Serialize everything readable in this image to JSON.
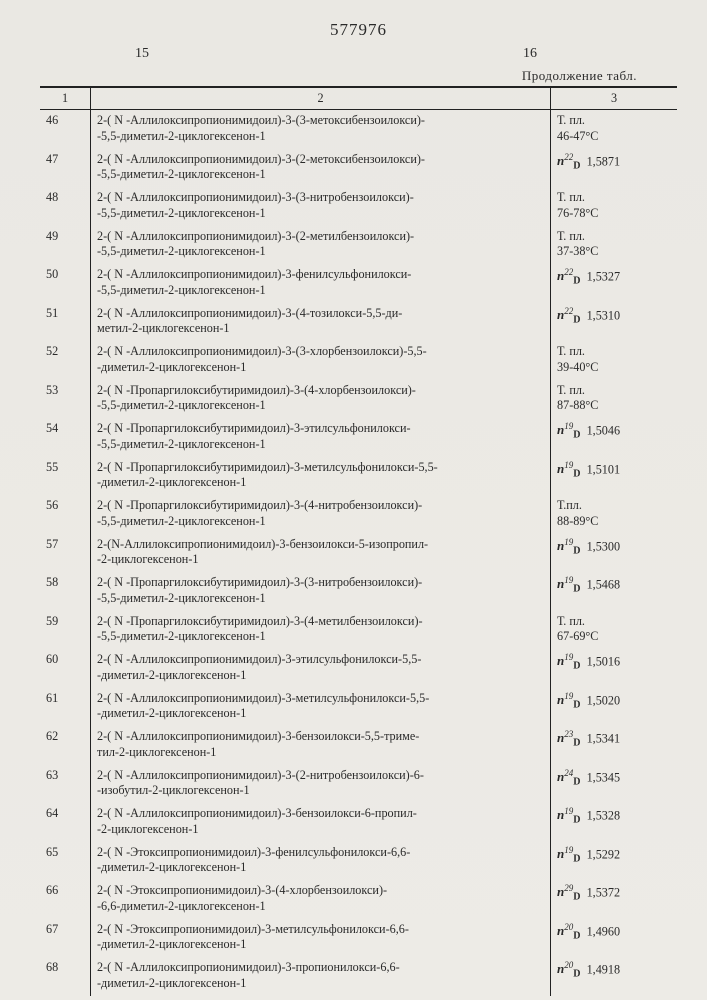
{
  "patent_number": "577976",
  "page_number_left": "15",
  "page_number_right": "16",
  "table_caption": "Продолжение табл.",
  "col_headers": {
    "c1": "1",
    "c2": "2",
    "c3": "3"
  },
  "rows": [
    {
      "idx": "46",
      "line1": "2-( N -Аллилоксипропионимидоил)-3-(3-метоксибензоилокси)-",
      "line2": "-5,5-диметил-2-циклогексенон-1",
      "prop_type": "mp",
      "mp_prefix": "Т. пл.",
      "mp_val": "46-47°С"
    },
    {
      "idx": "47",
      "line1": "2-( N -Аллилоксипропионимидоил)-3-(2-метоксибензоилокси)-",
      "line2": "-5,5-диметил-2-циклогексенон-1",
      "prop_type": "nd",
      "nd_t": "22",
      "nd_val": "1,5871"
    },
    {
      "idx": "48",
      "line1": "2-( N -Аллилоксипропионимидоил)-3-(3-нитробензоилокси)-",
      "line2": "-5,5-диметил-2-циклогексенон-1",
      "prop_type": "mp",
      "mp_prefix": "Т. пл.",
      "mp_val": "76-78°С"
    },
    {
      "idx": "49",
      "line1": "2-( N -Аллилоксипропионимидоил)-3-(2-метилбензоилокси)-",
      "line2": "-5,5-диметил-2-циклогексенон-1",
      "prop_type": "mp",
      "mp_prefix": "Т. пл.",
      "mp_val": "37-38°С"
    },
    {
      "idx": "50",
      "line1": "2-( N -Аллилоксипропионимидоил)-3-фенилсульфонилокси-",
      "line2": "-5,5-диметил-2-циклогексенон-1",
      "prop_type": "nd",
      "nd_t": "22",
      "nd_val": "1,5327"
    },
    {
      "idx": "51",
      "line1": "2-( N -Аллилоксипропионимидоил)-3-(4-тозилокси-5,5-ди-",
      "line2": "метил-2-циклогексенон-1",
      "prop_type": "nd",
      "nd_t": "22",
      "nd_val": "1,5310"
    },
    {
      "idx": "52",
      "line1": "2-( N -Аллилоксипропионимидоил)-3-(3-хлорбензоилокси)-5,5-",
      "line2": "-диметил-2-циклогексенон-1",
      "prop_type": "mp",
      "mp_prefix": "Т. пл.",
      "mp_val": "39-40°С"
    },
    {
      "idx": "53",
      "line1": "2-( N -Пропаргилоксибутиримидоил)-3-(4-хлорбензоилокси)-",
      "line2": "-5,5-диметил-2-циклогексенон-1",
      "prop_type": "mp",
      "mp_prefix": "Т. пл.",
      "mp_val": "87-88°С"
    },
    {
      "idx": "54",
      "line1": "2-( N -Пропаргилоксибутиримидоил)-3-этилсульфонилокси-",
      "line2": "-5,5-диметил-2-циклогексенон-1",
      "prop_type": "nd",
      "nd_t": "19",
      "nd_val": "1,5046"
    },
    {
      "idx": "55",
      "line1": "2-( N -Пропаргилоксибутиримидоил)-3-метилсульфонилокси-5,5-",
      "line2": "-диметил-2-циклогексенон-1",
      "prop_type": "nd",
      "nd_t": "19",
      "nd_val": "1,5101"
    },
    {
      "idx": "56",
      "line1": "2-( N -Пропаргилоксибутиримидоил)-3-(4-нитробензоилокси)-",
      "line2": "-5,5-диметил-2-циклогексенон-1",
      "prop_type": "mp",
      "mp_prefix": "Т.пл.",
      "mp_val": "88-89°С"
    },
    {
      "idx": "57",
      "line1": "2-(N-Аллилоксипропионимидоил)-3-бензоилокси-5-изопропил-",
      "line2": "-2-циклогексенон-1",
      "prop_type": "nd",
      "nd_t": "19",
      "nd_val": "1,5300"
    },
    {
      "idx": "58",
      "line1": "2-( N -Пропаргилоксибутиримидоил)-3-(3-нитробензоилокси)-",
      "line2": "-5,5-диметил-2-циклогексенон-1",
      "prop_type": "nd",
      "nd_t": "19",
      "nd_val": "1,5468"
    },
    {
      "idx": "59",
      "line1": "2-( N -Пропаргилоксибутиримидоил)-3-(4-метилбензоилокси)-",
      "line2": "-5,5-диметил-2-циклогексенон-1",
      "prop_type": "mp",
      "mp_prefix": "Т. пл.",
      "mp_val": "67-69°С"
    },
    {
      "idx": "60",
      "line1": "2-( N -Аллилоксипропионимидоил)-3-этилсульфонилокси-5,5-",
      "line2": "-диметил-2-циклогексенон-1",
      "prop_type": "nd",
      "nd_t": "19",
      "nd_val": "1,5016"
    },
    {
      "idx": "61",
      "line1": "2-( N -Аллилоксипропионимидоил)-3-метилсульфонилокси-5,5-",
      "line2": "-диметил-2-циклогексенон-1",
      "prop_type": "nd",
      "nd_t": "19",
      "nd_val": "1,5020"
    },
    {
      "idx": "62",
      "line1": "2-( N -Аллилоксипропионимидоил)-3-бензоилокси-5,5-триме-",
      "line2": "тил-2-циклогексенон-1",
      "prop_type": "nd",
      "nd_t": "23",
      "nd_val": "1,5341"
    },
    {
      "idx": "63",
      "line1": "2-( N -Аллилоксипропионимидоил)-3-(2-нитробензоилокси)-6-",
      "line2": "-изобутил-2-циклогексенон-1",
      "prop_type": "nd",
      "nd_t": "24",
      "nd_val": "1,5345"
    },
    {
      "idx": "64",
      "line1": "2-( N -Аллилоксипропионимидоил)-3-бензоилокси-6-пропил-",
      "line2": "-2-циклогексенон-1",
      "prop_type": "nd",
      "nd_t": "19",
      "nd_val": "1,5328"
    },
    {
      "idx": "65",
      "line1": "2-( N -Этоксипропионимидоил)-3-фенилсульфонилокси-6,6-",
      "line2": "-диметил-2-циклогексенон-1",
      "prop_type": "nd",
      "nd_t": "19",
      "nd_val": "1,5292"
    },
    {
      "idx": "66",
      "line1": "2-( N -Этоксипропионимидоил)-3-(4-хлорбензоилокси)-",
      "line2": "-6,6-диметил-2-циклогексенон-1",
      "prop_type": "nd",
      "nd_t": "29",
      "nd_val": "1,5372"
    },
    {
      "idx": "67",
      "line1": "2-( N -Этоксипропионимидоил)-3-метилсульфонилокси-6,6-",
      "line2": "-диметил-2-циклогексенон-1",
      "prop_type": "nd",
      "nd_t": "20",
      "nd_val": "1,4960"
    },
    {
      "idx": "68",
      "line1": "2-( N -Аллилоксипропионимидоил)-3-пропионилокси-6,6-",
      "line2": "-диметил-2-циклогексенон-1",
      "prop_type": "nd",
      "nd_t": "20",
      "nd_val": "1,4918"
    }
  ]
}
